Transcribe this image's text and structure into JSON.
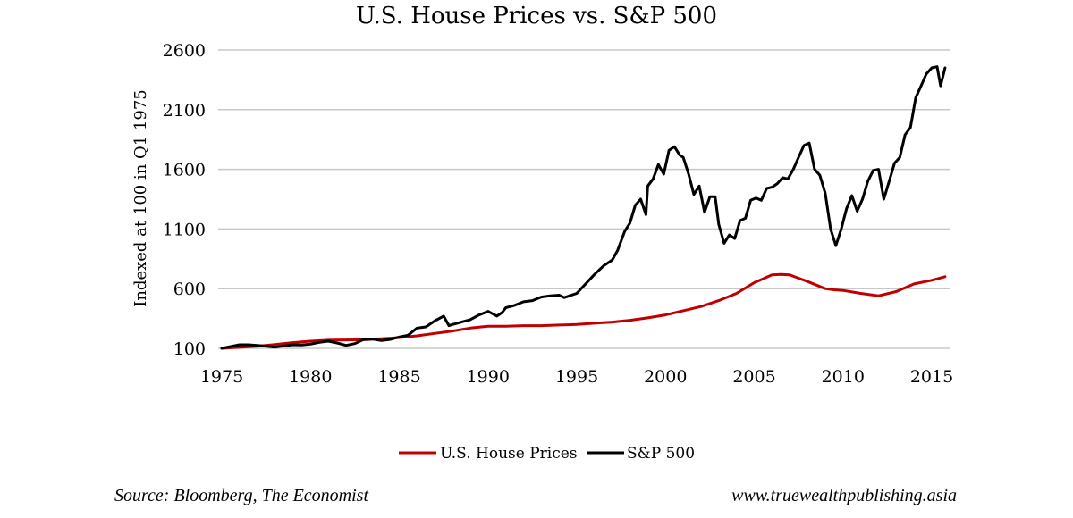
{
  "chart_data": {
    "type": "line",
    "title": "U.S. House Prices vs. S&P 500",
    "xlabel": "",
    "ylabel": "Indexed at 100 in Q1 1975",
    "xlim": [
      1975,
      2016
    ],
    "ylim": [
      100,
      2600
    ],
    "x_ticks": [
      "1975",
      "1980",
      "1985",
      "1990",
      "1995",
      "2000",
      "2005",
      "2010",
      "2015"
    ],
    "x_tick_values": [
      1975,
      1980,
      1985,
      1990,
      1995,
      2000,
      2005,
      2010,
      2015
    ],
    "y_ticks": [
      "100",
      "600",
      "1100",
      "1600",
      "2100",
      "2600"
    ],
    "y_tick_values": [
      100,
      600,
      1100,
      1600,
      2100,
      2600
    ],
    "grid": "horizontal",
    "legend_position": "bottom",
    "series": [
      {
        "name": "U.S. House Prices",
        "color": "#c00000",
        "x": [
          1975,
          1976,
          1977,
          1978,
          1979,
          1980,
          1981,
          1982,
          1983,
          1984,
          1985,
          1986,
          1987,
          1988,
          1989,
          1990,
          1991,
          1992,
          1993,
          1994,
          1995,
          1996,
          1997,
          1998,
          1999,
          2000,
          2001,
          2002,
          2003,
          2004,
          2005,
          2006,
          2006.5,
          2007,
          2008,
          2009,
          2009.5,
          2010,
          2011,
          2012,
          2013,
          2014,
          2015,
          2015.75
        ],
        "values": [
          100,
          108,
          118,
          132,
          148,
          160,
          168,
          170,
          172,
          180,
          190,
          205,
          225,
          245,
          270,
          285,
          285,
          290,
          290,
          295,
          300,
          310,
          320,
          335,
          355,
          380,
          415,
          450,
          500,
          560,
          650,
          715,
          720,
          715,
          660,
          600,
          590,
          585,
          560,
          540,
          575,
          640,
          670,
          700
        ]
      },
      {
        "name": "S&P 500",
        "color": "#000000",
        "x": [
          1975,
          1975.5,
          1976,
          1976.5,
          1977,
          1977.5,
          1978,
          1978.5,
          1979,
          1979.5,
          1980,
          1980.5,
          1981,
          1981.5,
          1982,
          1982.5,
          1983,
          1983.5,
          1984,
          1984.5,
          1985,
          1985.5,
          1986,
          1986.5,
          1987,
          1987.5,
          1987.8,
          1988,
          1988.5,
          1989,
          1989.5,
          1990,
          1990.5,
          1990.8,
          1991,
          1991.5,
          1992,
          1992.5,
          1993,
          1993.5,
          1994,
          1994.3,
          1994.7,
          1995,
          1995.5,
          1996,
          1996.5,
          1997,
          1997.3,
          1997.7,
          1998,
          1998.3,
          1998.6,
          1998.9,
          1999,
          1999.3,
          1999.6,
          1999.9,
          2000.2,
          2000.5,
          2000.8,
          2001,
          2001.3,
          2001.6,
          2001.9,
          2002.2,
          2002.5,
          2002.8,
          2003,
          2003.3,
          2003.6,
          2003.9,
          2004.2,
          2004.5,
          2004.8,
          2005.1,
          2005.4,
          2005.7,
          2006,
          2006.3,
          2006.6,
          2006.9,
          2007.2,
          2007.5,
          2007.8,
          2008.1,
          2008.4,
          2008.7,
          2009,
          2009.3,
          2009.6,
          2009.9,
          2010.2,
          2010.5,
          2010.8,
          2011.1,
          2011.4,
          2011.7,
          2012,
          2012.3,
          2012.6,
          2012.9,
          2013.2,
          2013.5,
          2013.8,
          2014.1,
          2014.4,
          2014.7,
          2015,
          2015.3,
          2015.5,
          2015.75
        ],
        "values": [
          100,
          115,
          130,
          130,
          125,
          118,
          110,
          120,
          130,
          128,
          135,
          150,
          160,
          145,
          125,
          140,
          175,
          178,
          165,
          175,
          195,
          210,
          270,
          280,
          330,
          370,
          290,
          300,
          320,
          340,
          380,
          410,
          370,
          400,
          440,
          460,
          490,
          500,
          530,
          540,
          545,
          525,
          545,
          560,
          640,
          720,
          790,
          840,
          920,
          1080,
          1150,
          1300,
          1350,
          1220,
          1460,
          1520,
          1640,
          1560,
          1760,
          1790,
          1720,
          1700,
          1560,
          1390,
          1460,
          1240,
          1370,
          1370,
          1140,
          980,
          1050,
          1020,
          1170,
          1190,
          1340,
          1360,
          1340,
          1440,
          1450,
          1480,
          1530,
          1520,
          1600,
          1700,
          1800,
          1820,
          1600,
          1550,
          1400,
          1100,
          960,
          1100,
          1270,
          1380,
          1250,
          1350,
          1500,
          1590,
          1600,
          1350,
          1500,
          1650,
          1700,
          1890,
          1950,
          2200,
          2300,
          2400,
          2450,
          2460,
          2300,
          2450
        ]
      }
    ]
  },
  "footer": {
    "source": "Source: Bloomberg, The Economist",
    "website": "www.truewealthpublishing.asia"
  }
}
